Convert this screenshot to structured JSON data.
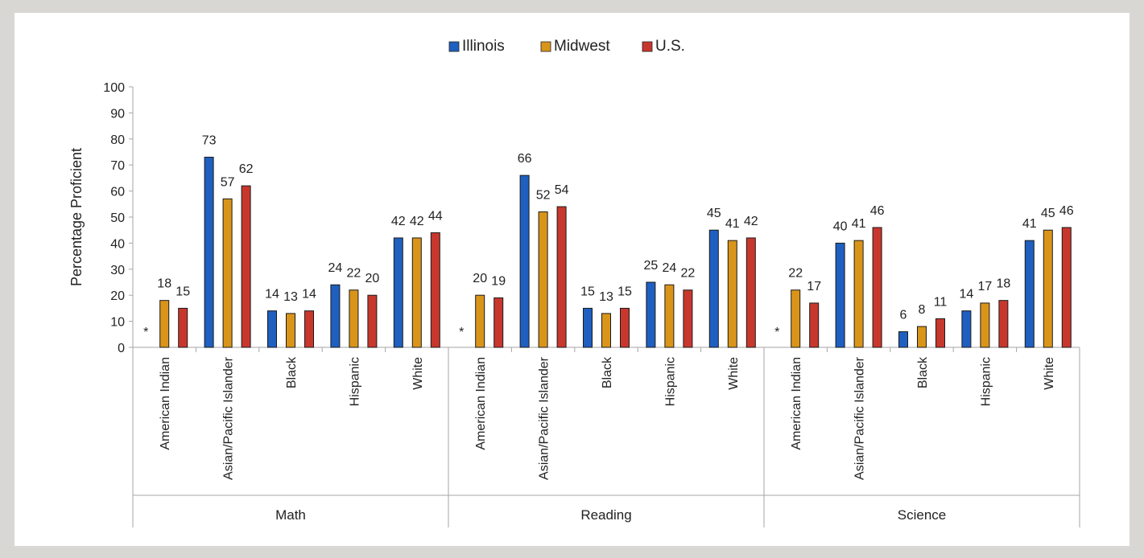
{
  "chart_data": {
    "type": "bar",
    "ylabel": "Percentage Proficient",
    "ylim": [
      0,
      100
    ],
    "yticks": [
      "0",
      "10",
      "20",
      "30",
      "40",
      "50",
      "60",
      "70",
      "80",
      "90",
      "100"
    ],
    "legend": {
      "placement": "top-center"
    },
    "series": [
      {
        "name": "Illinois",
        "color": "#1f5fbf"
      },
      {
        "name": "Midwest",
        "color": "#d9951a"
      },
      {
        "name": "U.S.",
        "color": "#c8372d"
      }
    ],
    "missing_marker": "*",
    "groups": [
      {
        "name": "Math",
        "categories": [
          "American Indian",
          "Asian/Pacific Islander",
          "Black",
          "Hispanic",
          "White"
        ],
        "values": [
          [
            null,
            18,
            15
          ],
          [
            73,
            57,
            62
          ],
          [
            14,
            13,
            14
          ],
          [
            24,
            22,
            20
          ],
          [
            42,
            42,
            44
          ]
        ],
        "display": [
          [
            null,
            "18",
            "15"
          ],
          [
            "73",
            "57",
            "62"
          ],
          [
            "14",
            "13",
            "14"
          ],
          [
            "24",
            "22",
            "20"
          ],
          [
            "42",
            "42",
            "44"
          ]
        ]
      },
      {
        "name": "Reading",
        "categories": [
          "American Indian",
          "Asian/Pacific Islander",
          "Black",
          "Hispanic",
          "White"
        ],
        "values": [
          [
            null,
            20,
            19
          ],
          [
            66,
            52,
            54
          ],
          [
            15,
            13,
            15
          ],
          [
            25,
            24,
            22
          ],
          [
            45,
            41,
            42
          ]
        ],
        "display": [
          [
            null,
            "20",
            "19"
          ],
          [
            "66",
            "52",
            "54"
          ],
          [
            "15",
            "13",
            "15"
          ],
          [
            "25",
            "24",
            "22"
          ],
          [
            "45",
            "41",
            "42"
          ]
        ]
      },
      {
        "name": "Science",
        "categories": [
          "American Indian",
          "Asian/Pacific Islander",
          "Black",
          "Hispanic",
          "White"
        ],
        "values": [
          [
            null,
            22,
            17
          ],
          [
            40,
            41,
            46
          ],
          [
            6,
            8,
            11
          ],
          [
            14,
            17,
            18
          ],
          [
            41,
            45,
            46
          ]
        ],
        "display": [
          [
            null,
            "22",
            "17"
          ],
          [
            "40",
            "41",
            "46"
          ],
          [
            "6",
            "8",
            "11"
          ],
          [
            "14",
            "17",
            "18"
          ],
          [
            "41",
            "45",
            "46"
          ]
        ]
      }
    ]
  }
}
